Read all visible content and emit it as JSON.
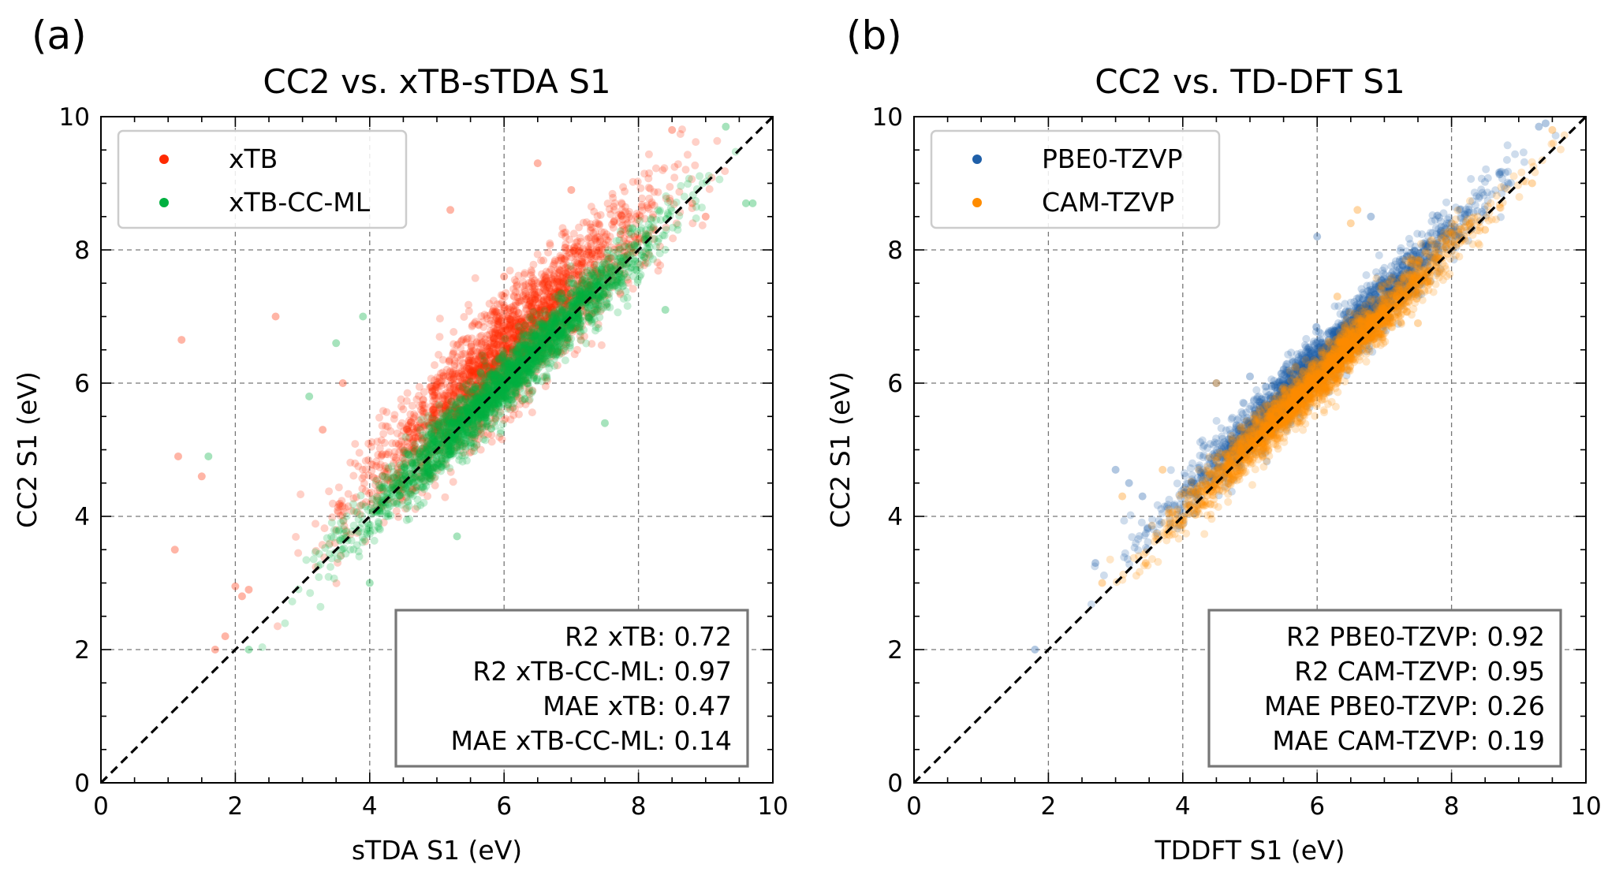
{
  "chart_data": [
    {
      "panel_label": "(a)",
      "type": "scatter",
      "title": "CC2 vs. xTB-sTDA S1",
      "xlabel": "sTDA S1 (eV)",
      "ylabel": "CC2 S1 (eV)",
      "xlim": [
        0,
        10
      ],
      "ylim": [
        0,
        10
      ],
      "xticks": [
        "0",
        "2",
        "4",
        "6",
        "8",
        "10"
      ],
      "yticks": [
        "0",
        "2",
        "4",
        "6",
        "8",
        "10"
      ],
      "grid": true,
      "legend_position": "upper-left",
      "reference_line": "y = x (black dashed)",
      "series": [
        {
          "name": "xTB",
          "color": "#ff2a00",
          "approx_distribution": {
            "x_range": [
              1.6,
              9.8
            ],
            "slope": 0.98,
            "offset": 0.55,
            "spread": 0.42
          },
          "points": [
            [
              1.2,
              6.65
            ],
            [
              1.1,
              3.5
            ],
            [
              1.15,
              4.9
            ],
            [
              1.5,
              4.6
            ],
            [
              1.7,
              2.0
            ],
            [
              1.85,
              2.2
            ],
            [
              2.0,
              2.95
            ],
            [
              2.1,
              2.8
            ],
            [
              2.2,
              2.9
            ],
            [
              2.6,
              7.0
            ],
            [
              3.3,
              5.3
            ],
            [
              3.6,
              6.0
            ],
            [
              5.2,
              8.6
            ],
            [
              6.0,
              7.6
            ],
            [
              6.5,
              9.3
            ],
            [
              7.0,
              8.9
            ],
            [
              8.5,
              9.8
            ],
            [
              8.8,
              8.7
            ],
            [
              9.0,
              8.5
            ]
          ]
        },
        {
          "name": "xTB-CC-ML",
          "color": "#00b040",
          "approx_distribution": {
            "x_range": [
              1.8,
              9.8
            ],
            "slope": 1.0,
            "offset": 0.0,
            "spread": 0.22
          },
          "points": [
            [
              1.6,
              4.9
            ],
            [
              2.2,
              2.0
            ],
            [
              3.1,
              5.8
            ],
            [
              3.5,
              6.6
            ],
            [
              3.9,
              7.0
            ],
            [
              4.0,
              3.0
            ],
            [
              5.3,
              3.7
            ],
            [
              7.5,
              5.4
            ],
            [
              8.4,
              7.1
            ],
            [
              9.3,
              9.85
            ],
            [
              9.6,
              8.7
            ],
            [
              9.7,
              8.7
            ]
          ]
        }
      ],
      "stats_box": [
        {
          "label": "R2 xTB:",
          "value": "0.72"
        },
        {
          "label": "R2 xTB-CC-ML:",
          "value": "0.97"
        },
        {
          "label": "MAE xTB:",
          "value": "0.47"
        },
        {
          "label": "MAE xTB-CC-ML:",
          "value": "0.14"
        }
      ]
    },
    {
      "panel_label": "(b)",
      "type": "scatter",
      "title": "CC2 vs. TD-DFT S1",
      "xlabel": "TDDFT S1 (eV)",
      "ylabel": "CC2 S1 (eV)",
      "xlim": [
        0,
        10
      ],
      "ylim": [
        0,
        10
      ],
      "xticks": [
        "0",
        "2",
        "4",
        "6",
        "8",
        "10"
      ],
      "yticks": [
        "0",
        "2",
        "4",
        "6",
        "8",
        "10"
      ],
      "grid": true,
      "legend_position": "upper-left",
      "reference_line": "y = x (black dashed)",
      "series": [
        {
          "name": "PBE0-TZVP",
          "color": "#1f5fa8",
          "approx_distribution": {
            "x_range": [
              1.8,
              9.8
            ],
            "slope": 1.0,
            "offset": 0.28,
            "spread": 0.2
          },
          "points": [
            [
              1.8,
              2.0
            ],
            [
              2.7,
              3.3
            ],
            [
              3.0,
              4.7
            ],
            [
              3.2,
              4.5
            ],
            [
              3.4,
              4.3
            ],
            [
              4.5,
              6.0
            ],
            [
              5.0,
              6.1
            ],
            [
              6.0,
              8.2
            ],
            [
              6.8,
              8.5
            ],
            [
              9.3,
              9.85
            ],
            [
              9.4,
              9.9
            ]
          ]
        },
        {
          "name": "CAM-TZVP",
          "color": "#ff8c00",
          "approx_distribution": {
            "x_range": [
              1.9,
              9.7
            ],
            "slope": 1.0,
            "offset": 0.05,
            "spread": 0.18
          },
          "points": [
            [
              2.8,
              3.0
            ],
            [
              3.1,
              4.3
            ],
            [
              3.7,
              4.7
            ],
            [
              4.5,
              6.0
            ],
            [
              5.3,
              5.2
            ],
            [
              6.3,
              7.3
            ],
            [
              6.5,
              8.4
            ],
            [
              6.6,
              8.6
            ],
            [
              7.5,
              6.9
            ],
            [
              8.5,
              8.3
            ],
            [
              9.2,
              9.0
            ],
            [
              9.5,
              9.8
            ]
          ]
        }
      ],
      "stats_box": [
        {
          "label": "R2 PBE0-TZVP:",
          "value": "0.92"
        },
        {
          "label": "R2 CAM-TZVP:",
          "value": "0.95"
        },
        {
          "label": "MAE PBE0-TZVP:",
          "value": "0.26"
        },
        {
          "label": "MAE CAM-TZVP:",
          "value": "0.19"
        }
      ]
    }
  ]
}
